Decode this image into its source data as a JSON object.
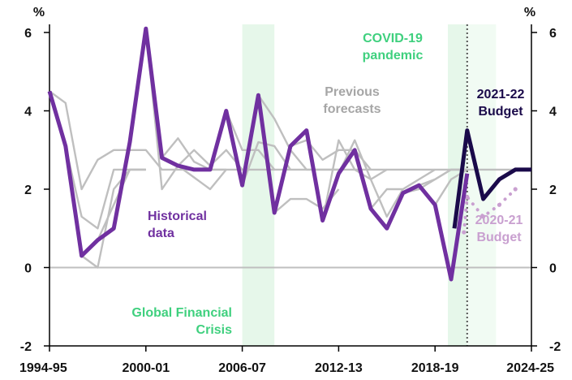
{
  "chart_data": {
    "type": "line",
    "units_left": "%",
    "units_right": "%",
    "ylim": [
      -2,
      6
    ],
    "yticks": [
      -2,
      0,
      2,
      4,
      6
    ],
    "x_tick_labels": [
      "1994-95",
      "2000-01",
      "2006-07",
      "2012-13",
      "2018-19",
      "2024-25"
    ],
    "x_tick_years": [
      1994,
      2000,
      2006,
      2012,
      2018,
      2024
    ],
    "grid": false,
    "shaded_periods": [
      {
        "from": 2006.0,
        "to": 2008.0,
        "label_id": "gfc"
      },
      {
        "from": 2018.8,
        "to": 2020.0,
        "label_id": "covid"
      },
      {
        "from": 2020.0,
        "to": 2021.8,
        "label_id": "covid-light"
      }
    ],
    "budget_marker_year": 2020.0,
    "colors": {
      "historical": "#7030a0",
      "budget_2122": "#1a0a4a",
      "budget_2021": "#c9a0d0",
      "previous": "#bfbfbf",
      "shade": "#e6f7ea",
      "shade_label": "#3fd07e",
      "axis": "#000000",
      "label_previous": "#a6a6a6"
    },
    "series": [
      {
        "role": "historical",
        "name": "Historical data",
        "x": [
          1994,
          1995,
          1996,
          1997,
          1998,
          1999,
          2000,
          2001,
          2002,
          2003,
          2004,
          2005,
          2006,
          2007,
          2008,
          2009,
          2010,
          2011,
          2012,
          2013,
          2014,
          2015,
          2016,
          2017,
          2018,
          2019,
          2020
        ],
        "y": [
          4.5,
          3.1,
          0.3,
          0.7,
          1.0,
          3.2,
          6.1,
          2.8,
          2.6,
          2.5,
          2.5,
          4.0,
          2.1,
          4.4,
          1.4,
          3.1,
          3.5,
          1.2,
          2.4,
          3.0,
          1.5,
          1.0,
          1.9,
          2.1,
          1.6,
          -0.3,
          2.4
        ]
      },
      {
        "role": "budget_2122",
        "name": "2021-22 Budget",
        "x": [
          2019.2,
          2020,
          2021,
          2022,
          2023,
          2024
        ],
        "y": [
          1.0,
          3.5,
          1.75,
          2.25,
          2.5,
          2.5
        ]
      },
      {
        "role": "budget_2021",
        "name": "2020-21 Budget",
        "x": [
          2019.8,
          2020,
          2021,
          2022,
          2023
        ],
        "y": [
          0.9,
          1.8,
          1.3,
          1.6,
          2.0
        ]
      },
      {
        "role": "previous",
        "x": [
          1994,
          1995,
          1996,
          1997,
          1998,
          1999,
          2000,
          2001,
          2002,
          2003,
          2004,
          2005,
          2006,
          2007,
          2008,
          2009,
          2010,
          2011,
          2012,
          2013,
          2014,
          2015,
          2016,
          2017,
          2018,
          2019,
          2020,
          2021,
          2022,
          2023,
          2024
        ],
        "y": [
          4.5,
          4.2,
          2.0,
          2.75,
          3.0,
          3.0,
          3.0,
          2.5,
          2.5,
          2.5,
          2.5,
          2.5,
          2.5,
          2.5,
          2.5,
          2.5,
          2.5,
          2.5,
          2.5,
          2.5,
          2.5,
          2.5,
          2.5,
          2.5,
          2.5,
          2.5,
          2.5,
          2.5,
          2.5,
          2.5,
          2.5
        ]
      },
      {
        "role": "previous",
        "x": [
          1995,
          1996,
          1997,
          1998,
          1999,
          2000
        ],
        "y": [
          3.1,
          1.3,
          1.0,
          2.5,
          2.5,
          2.5
        ]
      },
      {
        "role": "previous",
        "x": [
          1996,
          1997,
          1998,
          1999,
          2000
        ],
        "y": [
          0.3,
          0.0,
          2.0,
          2.5,
          2.5
        ]
      },
      {
        "role": "previous",
        "x": [
          1997,
          1998,
          1999,
          2000
        ],
        "y": [
          0.7,
          1.6,
          2.5,
          2.5
        ]
      },
      {
        "role": "previous",
        "x": [
          2000,
          2001,
          2002,
          2003,
          2004,
          2005
        ],
        "y": [
          6.1,
          2.0,
          2.6,
          2.3,
          2.0,
          2.5
        ]
      },
      {
        "role": "previous",
        "x": [
          2001,
          2002,
          2003,
          2004,
          2005
        ],
        "y": [
          2.8,
          3.3,
          2.7,
          2.5,
          2.5
        ]
      },
      {
        "role": "previous",
        "x": [
          2002,
          2003,
          2004,
          2005,
          2006
        ],
        "y": [
          2.6,
          3.0,
          2.6,
          3.0,
          2.5
        ]
      },
      {
        "role": "previous",
        "x": [
          2005,
          2006,
          2007,
          2008
        ],
        "y": [
          4.0,
          3.0,
          3.0,
          2.5
        ]
      },
      {
        "role": "previous",
        "x": [
          2006,
          2007,
          2008,
          2009
        ],
        "y": [
          2.1,
          3.2,
          3.1,
          2.5
        ]
      },
      {
        "role": "previous",
        "x": [
          2007,
          2008,
          2009,
          2010,
          2011,
          2012
        ],
        "y": [
          4.4,
          3.8,
          3.0,
          2.5,
          2.5,
          2.5
        ]
      },
      {
        "role": "previous",
        "x": [
          2008,
          2009,
          2010,
          2011,
          2012
        ],
        "y": [
          1.4,
          1.75,
          1.75,
          1.5,
          2.0
        ]
      },
      {
        "role": "previous",
        "x": [
          2009,
          2010,
          2011,
          2012,
          2013,
          2014
        ],
        "y": [
          3.1,
          3.25,
          2.75,
          3.0,
          3.0,
          2.5
        ]
      },
      {
        "role": "previous",
        "x": [
          2011,
          2012,
          2013,
          2014,
          2015
        ],
        "y": [
          1.2,
          3.25,
          2.5,
          2.25,
          2.5
        ]
      },
      {
        "role": "previous",
        "x": [
          2012,
          2013,
          2014,
          2015,
          2016
        ],
        "y": [
          2.4,
          3.25,
          2.25,
          1.3,
          2.0
        ]
      },
      {
        "role": "previous",
        "x": [
          2014,
          2015,
          2016,
          2017,
          2018
        ],
        "y": [
          1.5,
          2.0,
          2.0,
          2.25,
          2.5
        ]
      },
      {
        "role": "previous",
        "x": [
          2016,
          2017,
          2018,
          2019,
          2020
        ],
        "y": [
          1.9,
          2.0,
          2.25,
          2.5,
          2.5
        ]
      },
      {
        "role": "previous",
        "x": [
          2017,
          2018,
          2019,
          2020
        ],
        "y": [
          2.1,
          2.25,
          2.5,
          2.5
        ]
      },
      {
        "role": "previous",
        "x": [
          2018,
          2019,
          2020
        ],
        "y": [
          1.6,
          2.25,
          2.5
        ]
      }
    ],
    "annotations": {
      "covid": "COVID-19\npandemic",
      "previous": "Previous\nforecasts",
      "budget_2122": "2021-22\nBudget",
      "historical": "Historical\ndata",
      "budget_2021": "2020-21\nBudget",
      "gfc": "Global Financial\nCrisis"
    }
  }
}
